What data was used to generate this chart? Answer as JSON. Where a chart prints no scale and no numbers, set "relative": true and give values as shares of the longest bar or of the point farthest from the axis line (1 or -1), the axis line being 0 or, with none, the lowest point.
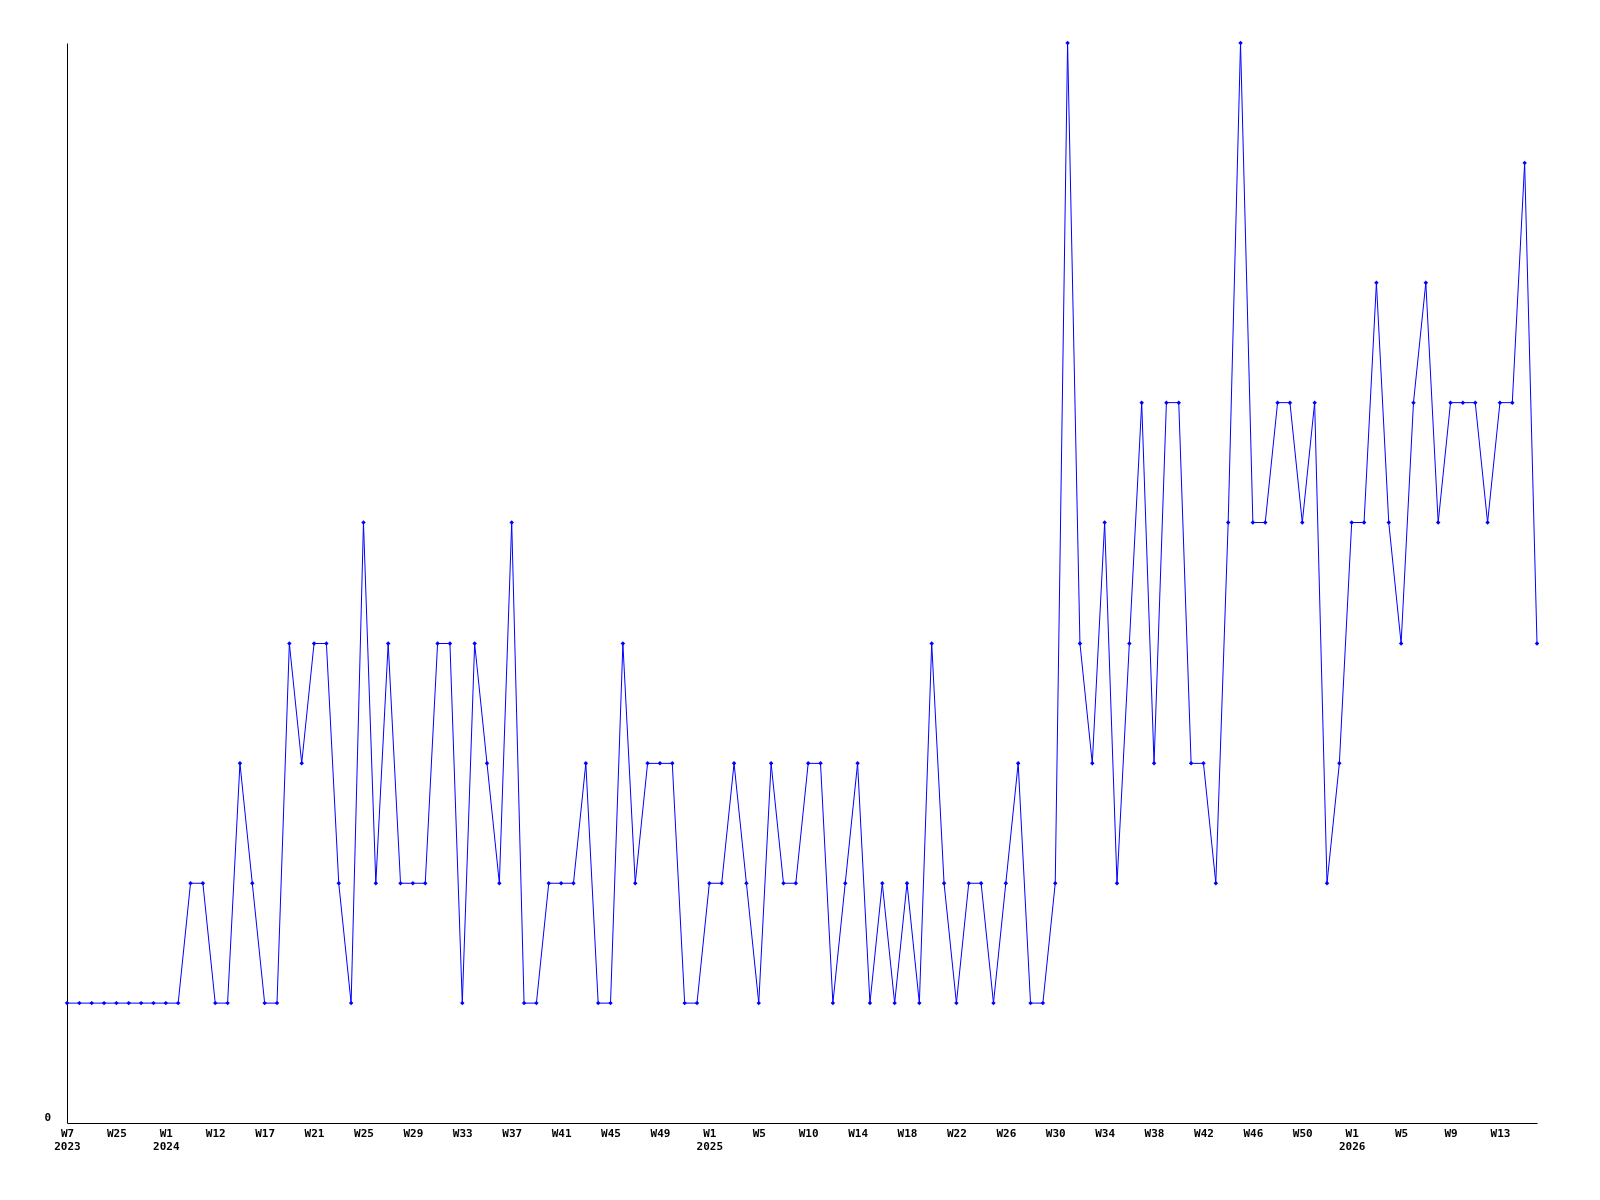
{
  "chart_data": {
    "type": "line",
    "relative": true,
    "annotations": [
      "0"
    ],
    "marker": "diamond",
    "grid": false,
    "legend": false,
    "categories": [
      "W7\n2023",
      null,
      null,
      null,
      "W25",
      null,
      null,
      null,
      "W1\n2024",
      null,
      null,
      null,
      "W12",
      null,
      null,
      null,
      "W17",
      null,
      null,
      null,
      "W21",
      null,
      null,
      null,
      "W25",
      null,
      null,
      null,
      "W29",
      null,
      null,
      null,
      "W33",
      null,
      null,
      null,
      "W37",
      null,
      null,
      null,
      "W41",
      null,
      null,
      null,
      "W45",
      null,
      null,
      null,
      "W49",
      null,
      null,
      null,
      "W1\n2025",
      null,
      null,
      null,
      "W5",
      null,
      null,
      null,
      "W10",
      null,
      null,
      null,
      "W14",
      null,
      null,
      null,
      "W18",
      null,
      null,
      null,
      "W22",
      null,
      null,
      null,
      "W26",
      null,
      null,
      null,
      "W30",
      null,
      null,
      null,
      "W34",
      null,
      null,
      null,
      "W38",
      null,
      null,
      null,
      "W42",
      null,
      null,
      null,
      "W46",
      null,
      null,
      null,
      "W50",
      null,
      null,
      null,
      "W1\n2026",
      null,
      null,
      null,
      "W5",
      null,
      null,
      null,
      "W9",
      null,
      null,
      null,
      "W13",
      null,
      null,
      null
    ],
    "series": [
      {
        "color": "#0000ff",
        "values": [
          0.111,
          0.111,
          0.111,
          0.111,
          0.111,
          0.111,
          0.111,
          0.111,
          0.111,
          0.111,
          0.222,
          0.222,
          0.111,
          0.111,
          0.333,
          0.222,
          0.111,
          0.111,
          0.444,
          0.333,
          0.444,
          0.444,
          0.222,
          0.111,
          0.556,
          0.222,
          0.444,
          0.222,
          0.222,
          0.222,
          0.444,
          0.444,
          0.111,
          0.444,
          0.333,
          0.222,
          0.556,
          0.111,
          0.111,
          0.222,
          0.222,
          0.222,
          0.333,
          0.111,
          0.111,
          0.444,
          0.222,
          0.333,
          0.333,
          0.333,
          0.111,
          0.111,
          0.222,
          0.222,
          0.333,
          0.222,
          0.111,
          0.333,
          0.222,
          0.222,
          0.333,
          0.333,
          0.111,
          0.222,
          0.333,
          0.111,
          0.222,
          0.111,
          0.222,
          0.111,
          0.444,
          0.222,
          0.111,
          0.222,
          0.222,
          0.111,
          0.222,
          0.333,
          0.111,
          0.111,
          0.222,
          1,
          0.444,
          0.333,
          0.556,
          0.222,
          0.444,
          0.667,
          0.333,
          0.667,
          0.667,
          0.333,
          0.333,
          0.222,
          0.556,
          1,
          0.556,
          0.556,
          0.667,
          0.667,
          0.556,
          0.667,
          0.222,
          0.333,
          0.556,
          0.556,
          0.778,
          0.556,
          0.444,
          0.667,
          0.778,
          0.556,
          0.667,
          0.667,
          0.667,
          0.556,
          0.667,
          0.667,
          0.889,
          0.444
        ]
      }
    ]
  }
}
